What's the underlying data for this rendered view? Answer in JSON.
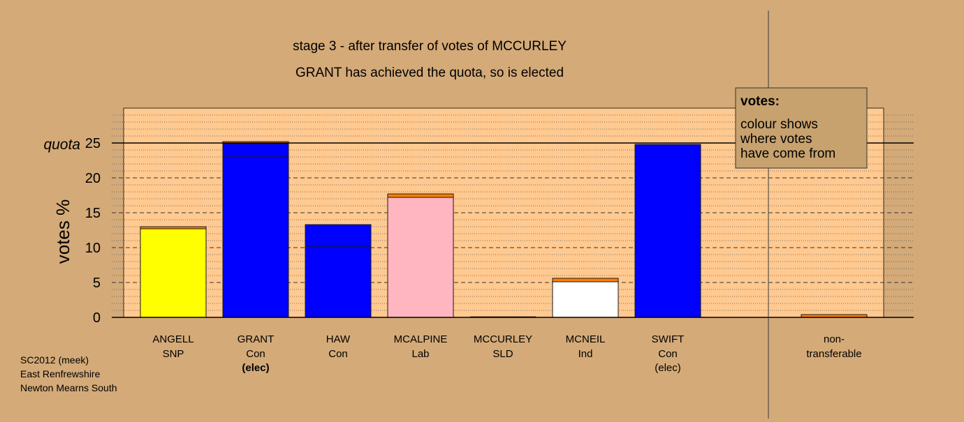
{
  "chart_data": {
    "type": "bar",
    "stacked": true,
    "title": "stage 3 - after transfer of votes of MCCURLEY",
    "subtitle": "GRANT has achieved the quota, so is elected",
    "ylabel": "votes %",
    "ylim": [
      0,
      30
    ],
    "yticks": [
      "0",
      "5",
      "10",
      "15",
      "20",
      "25"
    ],
    "quota_label": "quota",
    "quota_value": 25,
    "grid": true,
    "legend": {
      "position": "top-right",
      "title": "votes:",
      "lines": [
        "colour shows",
        "where votes",
        "have come from"
      ]
    },
    "candidates": [
      {
        "name": "ANGELL",
        "party": "SNP",
        "status": "",
        "segments": [
          {
            "value": 12.7,
            "color": "#ffff00"
          },
          {
            "value": 0.3,
            "color": "#ff7f00"
          }
        ]
      },
      {
        "name": "GRANT",
        "party": "Con",
        "status": "(elec)",
        "segments": [
          {
            "value": 23.0,
            "color": "#0000ff"
          },
          {
            "value": 1.9,
            "color": "#0000ff"
          },
          {
            "value": 0.3,
            "color": "#ff7f00"
          }
        ]
      },
      {
        "name": "HAW",
        "party": "Con",
        "status": "",
        "segments": [
          {
            "value": 10.2,
            "color": "#0000ff"
          },
          {
            "value": 3.1,
            "color": "#0000ff"
          }
        ]
      },
      {
        "name": "MCALPINE",
        "party": "Lab",
        "status": "",
        "segments": [
          {
            "value": 17.2,
            "color": "#ffb6c1"
          },
          {
            "value": 0.5,
            "color": "#ff7f00"
          }
        ]
      },
      {
        "name": "MCCURLEY",
        "party": "SLD",
        "status": "",
        "segments": []
      },
      {
        "name": "MCNEIL",
        "party": "Ind",
        "status": "",
        "segments": [
          {
            "value": 5.1,
            "color": "#ffffff"
          },
          {
            "value": 0.5,
            "color": "#ff7f00"
          }
        ]
      },
      {
        "name": "SWIFT",
        "party": "Con",
        "status": "(elec)",
        "segments": [
          {
            "value": 24.8,
            "color": "#0000ff"
          }
        ]
      }
    ],
    "nontransferable": {
      "line1": "non-",
      "line2": "transferable",
      "value": 0.4,
      "color": "#ff7f00"
    }
  },
  "footer": {
    "line1": "SC2012 (meek)",
    "line2": "East Renfrewshire",
    "line3": "Newton Mearns South"
  }
}
